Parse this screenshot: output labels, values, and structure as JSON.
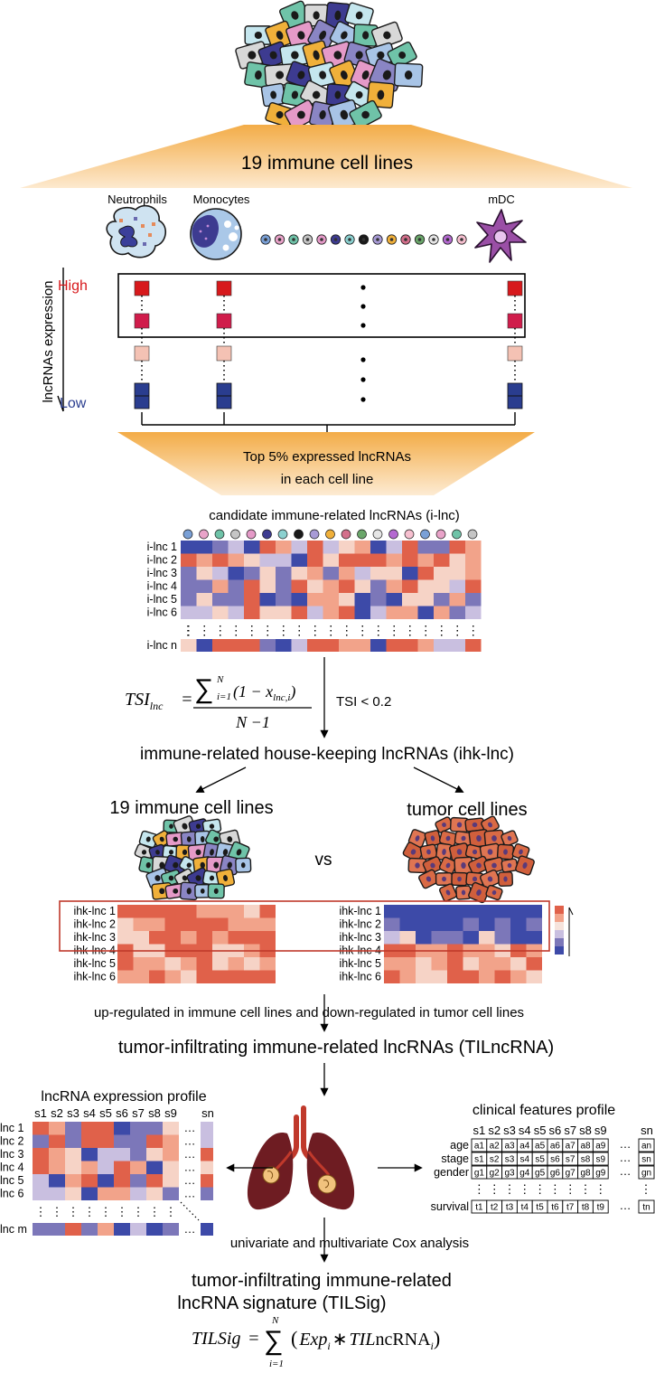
{
  "colors": {
    "high": "#d7191c",
    "crimson": "#d01c4b",
    "pink": "#f4c2b4",
    "low": "#2a3d8f",
    "heat_red": "#e0614a",
    "heat_salmon": "#f2a38a",
    "heat_light": "#f6d3c6",
    "heat_lav": "#c9bfe0",
    "heat_blue": "#3d4aa8",
    "heat_purple": "#7c77b9",
    "orange_band": "#f3ac47",
    "frame_red": "#c0392b",
    "tumor": "#d96a45",
    "lung": "#6e1c22"
  },
  "header": {
    "cell_lines_title": "19 immune cell lines",
    "cell_neutrophils": "Neutrophils",
    "cell_monocytes": "Monocytes",
    "cell_mdc": "mDC"
  },
  "expression": {
    "axis_label": "lncRNAs expression",
    "high_label": "High",
    "low_label": "Low",
    "dots": "•",
    "top_band_line1": "Top 5% expressed lncRNAs",
    "top_band_line2": "in each cell line"
  },
  "candidate": {
    "title": "candidate immune-related lncRNAs (i-lnc)",
    "rows": [
      "i-lnc 1",
      "i-lnc 2",
      "i-lnc 3",
      "i-lnc 4",
      "i-lnc 5",
      "i-lnc 6"
    ],
    "last_row": "i-lnc n",
    "vdots": "⋮"
  },
  "tsi": {
    "lhs": "TSI",
    "lhs_sub": "lnc",
    "equals": "=",
    "sum": "∑",
    "sum_upper": "N",
    "sum_lower": "i=1",
    "term_open": "(1 − x",
    "term_sub": "lnc,i",
    "term_close": ")",
    "denominator": "N −1",
    "threshold": "TSI < 0.2"
  },
  "ihk": {
    "title": "immune-related house-keeping lncRNAs (ihk-lnc)",
    "left_title": "19 immune cell lines",
    "right_title": "tumor cell lines",
    "vs": "vs",
    "rows": [
      "ihk-lnc 1",
      "ihk-lnc 2",
      "ihk-lnc 3",
      "ihk-lnc 4",
      "ihk-lnc 5",
      "ihk-lnc 6"
    ],
    "regulation_text": "up-regulated in immune cell lines and down-regulated in tumor cell lines"
  },
  "tilncrna": {
    "title": "tumor-infiltrating immune-related lncRNAs (TILncRNA)"
  },
  "profile": {
    "title": "lncRNA expression profile",
    "samples": [
      "s1",
      "s2",
      "s3",
      "s4",
      "s5",
      "s6",
      "s7",
      "s8",
      "s9"
    ],
    "last_sample": "sn",
    "rows": [
      "lnc 1",
      "lnc 2",
      "lnc 3",
      "lnc 4",
      "lnc 5",
      "lnc 6"
    ],
    "last_row": "lnc m",
    "hdots": "…"
  },
  "clinical": {
    "title": "clinical features profile",
    "samples": [
      "s1",
      "s2",
      "s3",
      "s4",
      "s5",
      "s6",
      "s7",
      "s8",
      "s9"
    ],
    "last_sample": "sn",
    "features": [
      {
        "label": "age",
        "values": [
          "a1",
          "a2",
          "a3",
          "a4",
          "a5",
          "a6",
          "a7",
          "a8",
          "a9"
        ],
        "last": "an"
      },
      {
        "label": "stage",
        "values": [
          "s1",
          "s2",
          "s3",
          "s4",
          "s5",
          "s6",
          "s7",
          "s8",
          "s9"
        ],
        "last": "sn"
      },
      {
        "label": "gender",
        "values": [
          "g1",
          "g2",
          "g3",
          "g4",
          "g5",
          "g6",
          "g7",
          "g8",
          "g9"
        ],
        "last": "gn"
      },
      {
        "label": "survival",
        "values": [
          "t1",
          "t2",
          "t3",
          "t4",
          "t5",
          "t6",
          "t7",
          "t8",
          "t9"
        ],
        "last": "tn"
      }
    ]
  },
  "cox": {
    "text": "univariate and multivariate Cox analysis"
  },
  "signature": {
    "title_line1": "tumor-infiltrating immune-related",
    "title_line2": "lncRNA signature (TILSig)",
    "lhs": "TILSig",
    "equals": "=",
    "sum": "∑",
    "sum_upper": "N",
    "sum_lower": "i=1",
    "term_open": "(",
    "exp": "Exp",
    "exp_sub": "i",
    "times": "∗",
    "til": "TIL",
    "ncrna": "ncRNA",
    "til_sub": "i",
    "term_close": ")"
  }
}
